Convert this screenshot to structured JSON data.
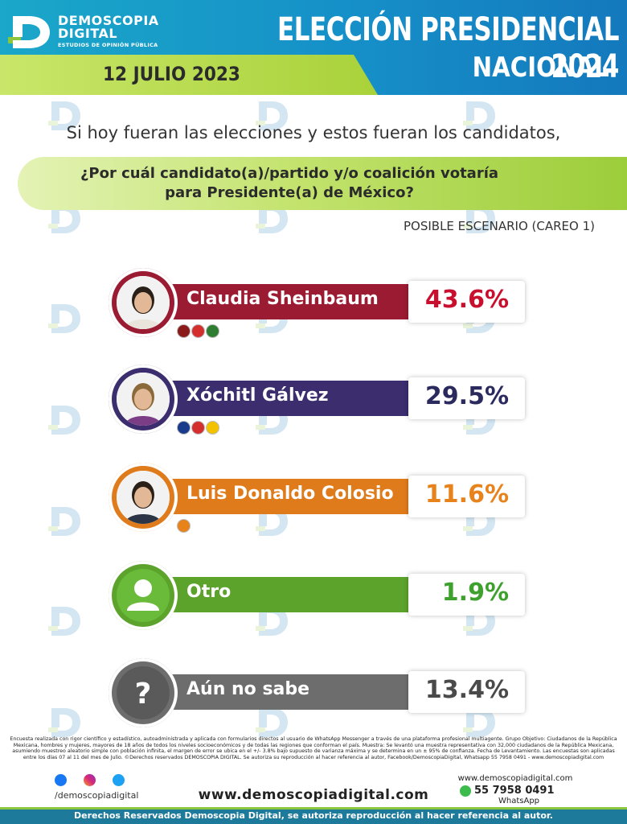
{
  "header": {
    "brand_name_line1": "DEMOSCOPIA",
    "brand_name_line2": "DIGITAL",
    "brand_tagline": "ESTUDIOS DE OPINIÓN PÚBLICA",
    "title": "ELECCIÓN PRESIDENCIAL 2024",
    "subtitle": "NACIONAL",
    "date": "12 JULIO 2023"
  },
  "question": {
    "intro": "Si hoy fueran las elecciones y estos fueran los candidatos,",
    "line1": "¿Por cuál candidato(a)/partido y/o coalición votaría",
    "line2": "para Presidente(a) de México?",
    "scenario": "POSIBLE ESCENARIO (CAREO 1)"
  },
  "chart_data": {
    "type": "bar",
    "categories": [
      "Claudia Sheinbaum",
      "Xóchitl Gálvez",
      "Luis Donaldo Colosio",
      "Otro",
      "Aún no sabe"
    ],
    "values": [
      43.6,
      29.5,
      11.6,
      1.9,
      13.4
    ],
    "value_labels": [
      "43.6%",
      "29.5%",
      "11.6%",
      "1.9%",
      "13.4%"
    ],
    "colors": [
      "#9b1b32",
      "#3b2d6e",
      "#e07b1c",
      "#5ba32b",
      "#6d6d6d"
    ],
    "value_colors": [
      "#c8102e",
      "#2b2a5e",
      "#e8821a",
      "#3ea12e",
      "#4a4a4a"
    ],
    "unit": "%"
  },
  "icons": {
    "avatar_0": "photo-claudia-sheinbaum",
    "avatar_1": "photo-xochitl-galvez",
    "avatar_2": "photo-luis-donaldo-colosio",
    "avatar_3": "generic-person-icon",
    "avatar_4": "question-mark-icon"
  },
  "footer": {
    "note": "Encuesta realizada con rigor científico y estadístico, autoadministrada y aplicada con formularios directos al usuario de WhatsApp Messenger a través de una plataforma profesional multiagente. Grupo Objetivo: Ciudadanos de la República Mexicana, hombres y mujeres, mayores de 18 años de todos los niveles socioeconómicos y de todas las regiones que conforman el país. Muestra: Se levantó una muestra representativa con 32,000 ciudadanos de la República Mexicana, asumiendo muestreo aleatorio simple con población infinita, el margen de error se ubica en el +/- 3.8% bajo supuesto de varianza máxima y se determina en un ± 95% de confianza. Fecha de Levantamiento. Las encuestas son aplicadas entre los días 07 al 11 del mes de Julio. ©Derechos reservados DEMOSCOPIA DIGITAL. Se autoriza su reproducción al hacer referencia al autor, Facebook/DemoscopiaDigital, Whatsapp 55 7958 0491 - www.demoscopiadigital.com",
    "social_handle": "/demoscopiadigital",
    "website": "www.demoscopiadigital.com",
    "contact_site": "www.demoscopiadigital.com",
    "phone": "55 7958 0491",
    "whatsapp_label": "WhatsApp",
    "rights": "Derechos Reservados Demoscopia Digital, se autoriza reproducción al hacer referencia al autor."
  }
}
